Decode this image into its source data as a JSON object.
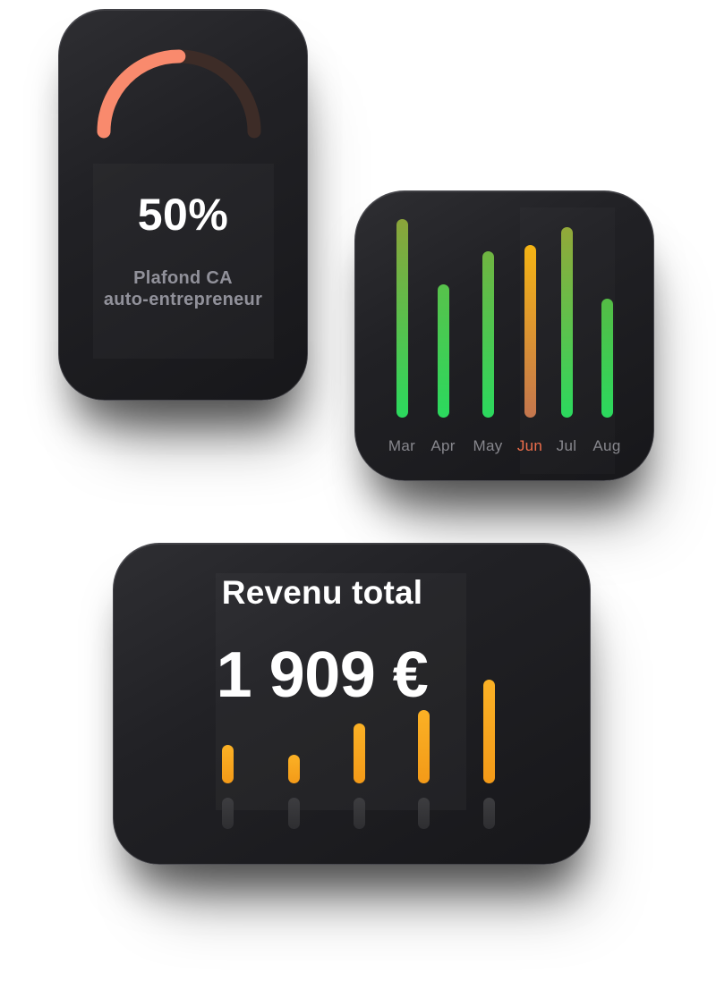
{
  "page": {
    "background": "#ffffff"
  },
  "gauge_card": {
    "value_label": "50%",
    "caption_line1": "Plafond CA",
    "caption_line2": "auto-entrepreneur",
    "percent": 50,
    "arc_color": "#F98A6D",
    "track_color": "#3D2C27",
    "value_color": "#FFFFFF",
    "caption_color": "#91919A"
  },
  "barchart_card": {
    "label_color": "#87878D",
    "highlight_label_color": "#EE6E4B",
    "highlight_index": 3,
    "bars": [
      {
        "month": "Mar",
        "value": 100,
        "gradient_bottom": "#2BD95E",
        "gradient_top": "#8BA43A"
      },
      {
        "month": "Apr",
        "value": 67,
        "gradient_bottom": "#2BD95E",
        "gradient_top": "#58C24B"
      },
      {
        "month": "May",
        "value": 84,
        "gradient_bottom": "#2BD95E",
        "gradient_top": "#70B441"
      },
      {
        "month": "Jun",
        "value": 87,
        "gradient_bottom": "#C4764E",
        "gradient_top": "#F5B414"
      },
      {
        "month": "Jul",
        "value": 96,
        "gradient_bottom": "#2BD95E",
        "gradient_top": "#93A839"
      },
      {
        "month": "Aug",
        "value": 60,
        "gradient_bottom": "#2BD95E",
        "gradient_top": "#55BC45"
      }
    ]
  },
  "revenue_card": {
    "title": "Revenu total",
    "amount": "1 909 €",
    "bar_gradient_top": "#FBB125",
    "bar_gradient_bottom": "#F39A18",
    "stub_gradient_top": "#3D3D40",
    "stub_gradient_bottom": "#2E2E31",
    "values": [
      37,
      28,
      58,
      71,
      100
    ]
  },
  "chart_data": [
    {
      "type": "gauge",
      "title": "Plafond CA auto-entrepreneur",
      "value": 50,
      "max": 100,
      "value_label": "50%",
      "shape": "semicircle",
      "filled_color": "#F98A6D",
      "track_color": "#3D2C27"
    },
    {
      "type": "bar",
      "categories": [
        "Mar",
        "Apr",
        "May",
        "Jun",
        "Jul",
        "Aug"
      ],
      "values": [
        100,
        67,
        84,
        87,
        96,
        60
      ],
      "ylim": [
        0,
        100
      ],
      "grid": false,
      "note": "values are relative bar heights (no axis shown); Jun bar and label highlighted in orange/amber, other bars green gradient",
      "highlight_category": "Jun"
    },
    {
      "type": "bar",
      "title": "Revenu total",
      "total_label": "1 909 €",
      "categories": [
        "",
        "",
        "",
        "",
        ""
      ],
      "values": [
        37,
        28,
        58,
        71,
        100
      ],
      "ylim": [
        0,
        100
      ],
      "grid": false,
      "note": "orange mini bars with gray stub markers below baseline; no axis labels shown"
    }
  ]
}
